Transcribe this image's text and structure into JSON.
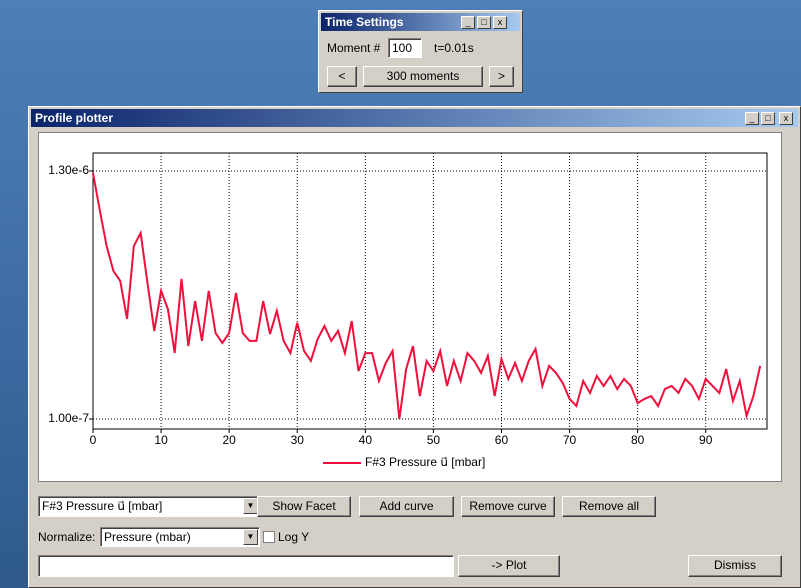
{
  "time_settings": {
    "title": "Time Settings",
    "moment_label": "Moment #",
    "moment_value": "100",
    "time": "t=0.01s",
    "prev": "<",
    "moments": "300 moments",
    "next": ">"
  },
  "plotter": {
    "title": "Profile plotter",
    "curve_select": "F#3 Pressure u⃗ [mbar]",
    "show_facet": "Show Facet",
    "add_curve": "Add curve",
    "remove_curve": "Remove curve",
    "remove_all": "Remove all",
    "normalize_label": "Normalize:",
    "normalize_select": "Pressure (mbar)",
    "log_y": "Log Y",
    "plot": "-> Plot",
    "dismiss": "Dismiss"
  },
  "chart_data": {
    "type": "line",
    "x": [
      0,
      1,
      2,
      3,
      4,
      5,
      6,
      7,
      8,
      9,
      10,
      11,
      12,
      13,
      14,
      15,
      16,
      17,
      18,
      19,
      20,
      21,
      22,
      23,
      24,
      25,
      26,
      27,
      28,
      29,
      30,
      31,
      32,
      33,
      34,
      35,
      36,
      37,
      38,
      39,
      40,
      41,
      42,
      43,
      44,
      45,
      46,
      47,
      48,
      49,
      50,
      51,
      52,
      53,
      54,
      55,
      56,
      57,
      58,
      59,
      60,
      61,
      62,
      63,
      64,
      65,
      66,
      67,
      68,
      69,
      70,
      71,
      72,
      73,
      74,
      75,
      76,
      77,
      78,
      79,
      80,
      81,
      82,
      83,
      84,
      85,
      86,
      87,
      88,
      89,
      90,
      91,
      92,
      93,
      94,
      95,
      96,
      97,
      98
    ],
    "series": [
      {
        "name": "F#3 Pressure u⃗ [mbar]",
        "color": "#f0103c",
        "values": [
          1.29e-06,
          1.11e-06,
          9.37e-07,
          8.16e-07,
          7.68e-07,
          5.84e-07,
          9.37e-07,
          1e-06,
          7.58e-07,
          5.26e-07,
          7.2e-07,
          6.32e-07,
          4.19e-07,
          7.78e-07,
          4.53e-07,
          6.71e-07,
          4.78e-07,
          7.2e-07,
          5.16e-07,
          4.68e-07,
          5.16e-07,
          7.1e-07,
          5.16e-07,
          4.78e-07,
          4.78e-07,
          6.71e-07,
          5.11e-07,
          6.23e-07,
          4.78e-07,
          4.19e-07,
          5.65e-07,
          4.29e-07,
          3.81e-07,
          4.87e-07,
          5.5e-07,
          4.78e-07,
          5.26e-07,
          4.19e-07,
          5.74e-07,
          3.32e-07,
          4.19e-07,
          4.19e-07,
          2.84e-07,
          3.71e-07,
          4.29e-07,
          1e-07,
          3.42e-07,
          4.53e-07,
          2.11e-07,
          3.81e-07,
          3.32e-07,
          4.29e-07,
          2.6e-07,
          3.81e-07,
          2.84e-07,
          4.19e-07,
          3.81e-07,
          3.23e-07,
          4.05e-07,
          2.11e-07,
          3.9e-07,
          2.94e-07,
          3.71e-07,
          2.84e-07,
          3.81e-07,
          4.39e-07,
          2.6e-07,
          3.57e-07,
          3.23e-07,
          2.74e-07,
          1.97e-07,
          1.63e-07,
          2.84e-07,
          2.26e-07,
          3.08e-07,
          2.6e-07,
          3.08e-07,
          2.45e-07,
          2.94e-07,
          2.6e-07,
          1.77e-07,
          1.97e-07,
          2.11e-07,
          1.63e-07,
          2.45e-07,
          2.6e-07,
          2.26e-07,
          2.94e-07,
          2.6e-07,
          1.97e-07,
          2.94e-07,
          2.6e-07,
          2.26e-07,
          3.42e-07,
          1.87e-07,
          2.84e-07,
          1.15e-07,
          2.11e-07,
          3.57e-07
        ]
      }
    ],
    "xlim": [
      0,
      99
    ],
    "xticks": [
      0,
      10,
      20,
      30,
      40,
      50,
      60,
      70,
      80,
      90
    ],
    "ylim": [
      5.16e-08,
      1.387e-06
    ],
    "yticks": [
      {
        "value": 1e-07,
        "label": "1.00e-7"
      },
      {
        "value": 1.3e-06,
        "label": "1.30e-6"
      }
    ],
    "grid": true,
    "legend": "bottom"
  }
}
